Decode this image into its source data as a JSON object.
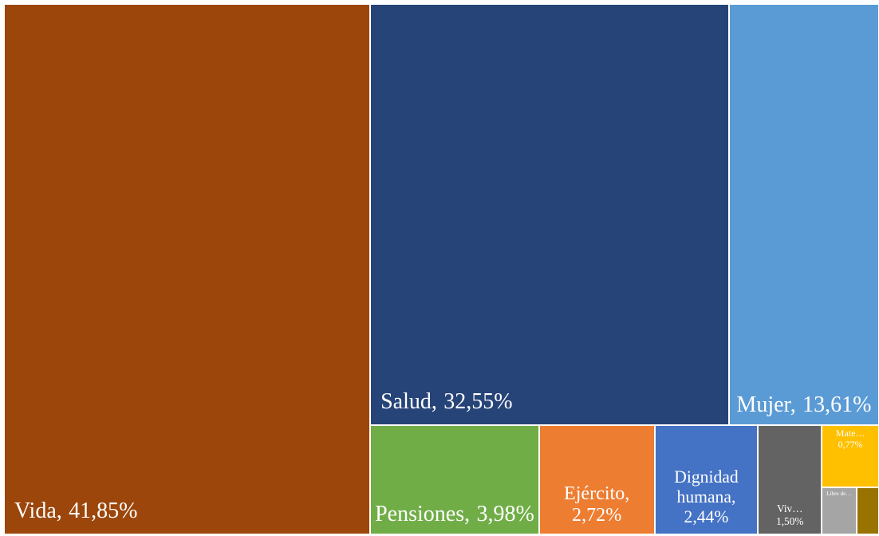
{
  "chart_data": {
    "type": "treemap",
    "categories": [
      "Vida,",
      "Salud,",
      "Mujer,",
      "Pensiones,",
      "Ejército,",
      "Dignidad humana,",
      "Viv…",
      "Mate…",
      "Libre de…",
      null
    ],
    "values": [
      41.85,
      32.55,
      13.61,
      3.98,
      2.72,
      2.44,
      1.5,
      0.77,
      0.35,
      0.23
    ],
    "value_labels": [
      "41,85%",
      "32,55%",
      "13,61%",
      "3,98%",
      "2,72%",
      "2,44%",
      "1,50%",
      "0,77%",
      null,
      null
    ],
    "colors": [
      "#9c460c",
      "#264478",
      "#5b9bd5",
      "#70ad47",
      "#ed7d31",
      "#4472c4",
      "#636363",
      "#ffc000",
      "#a5a5a5",
      "#997300"
    ]
  }
}
